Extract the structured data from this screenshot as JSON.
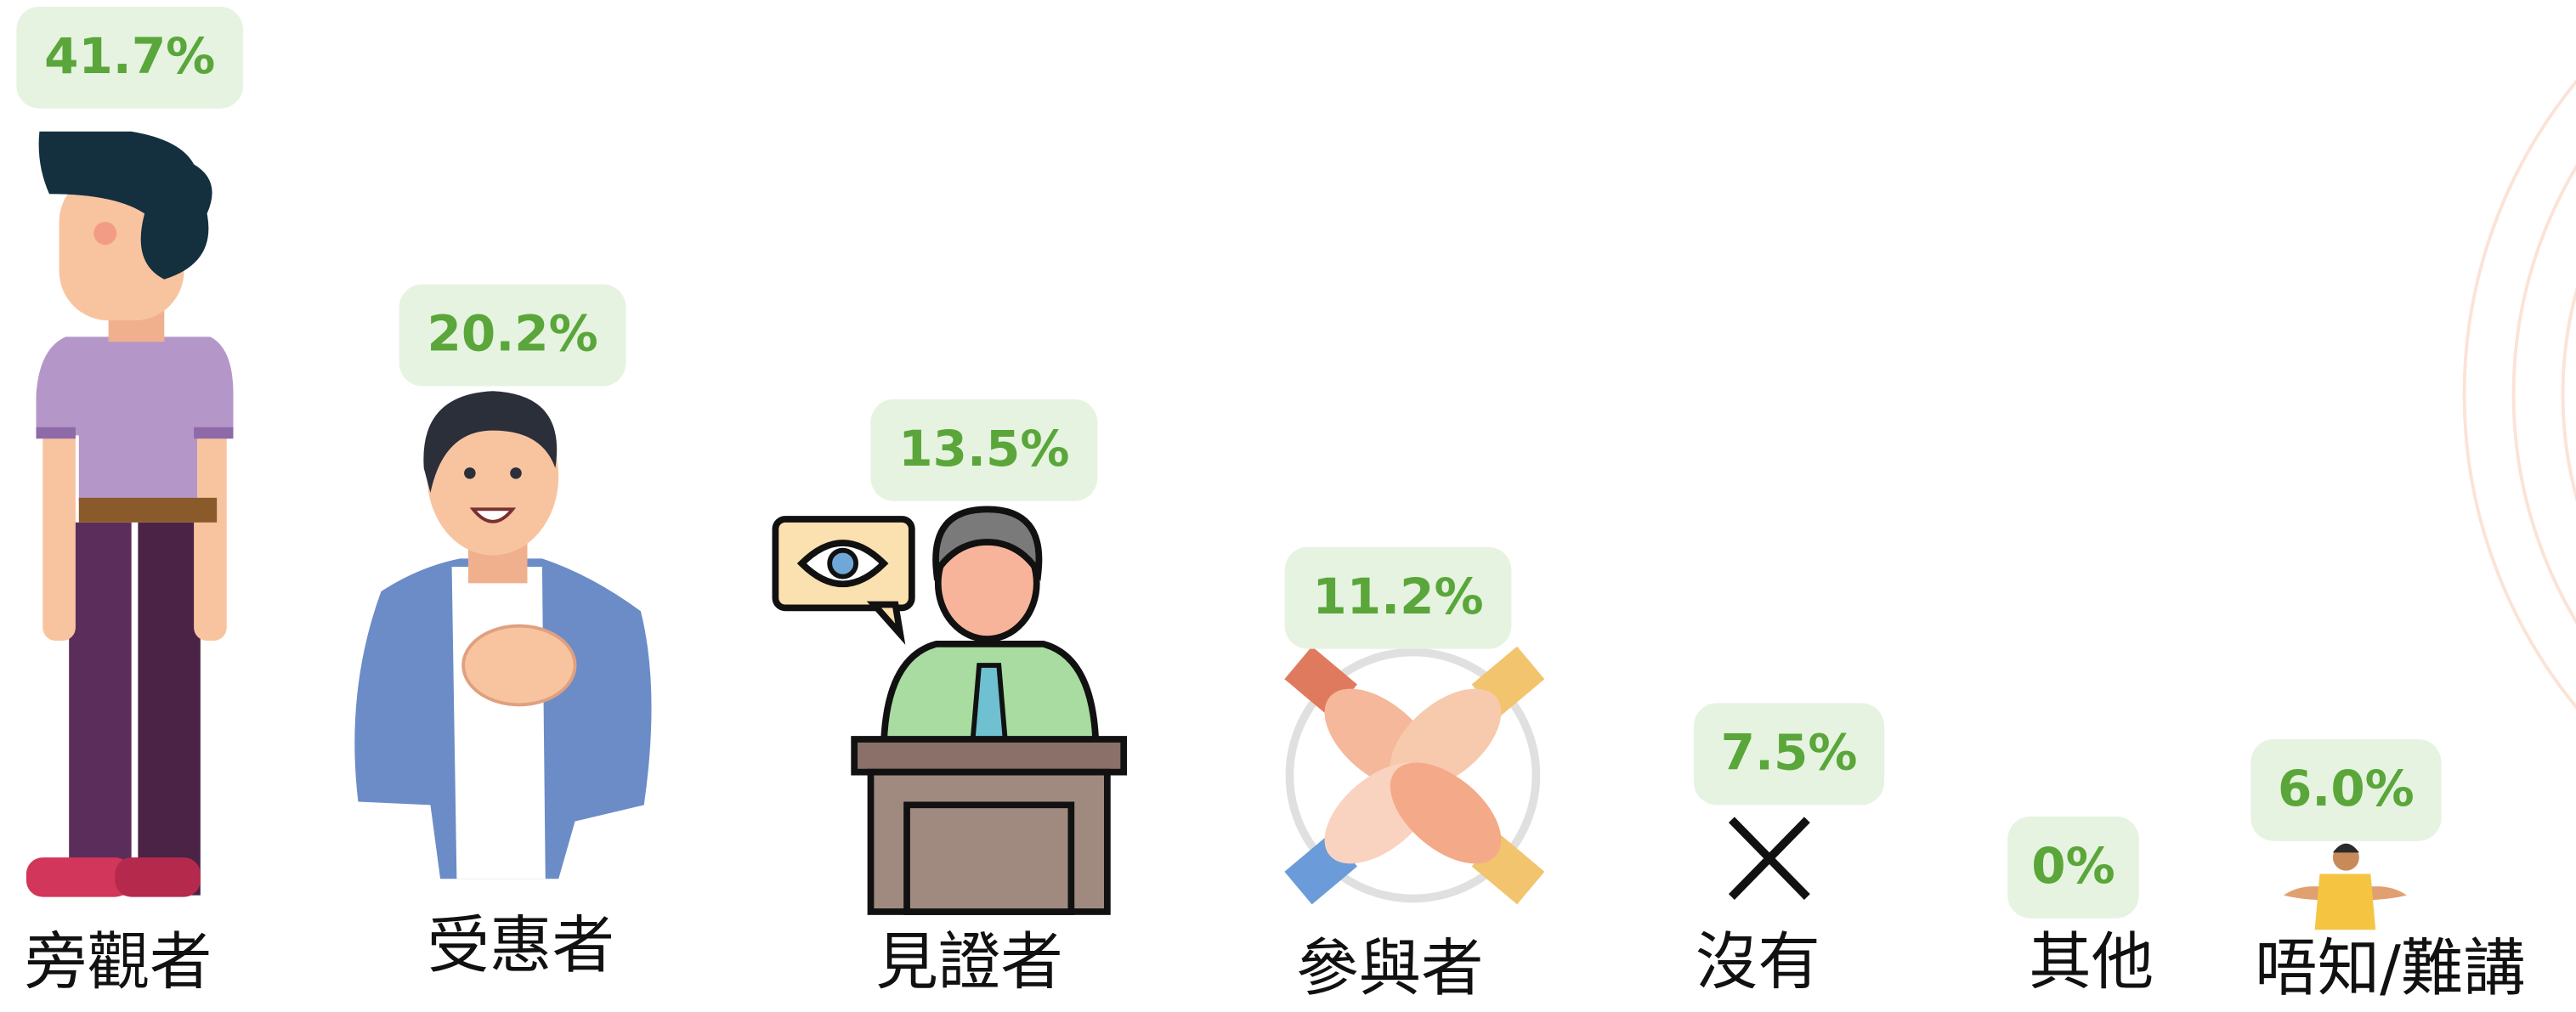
{
  "chart_data": {
    "type": "pictogram",
    "categories": [
      "旁觀者",
      "受惠者",
      "見證者",
      "參與者",
      "沒有",
      "其他",
      "唔知/難講"
    ],
    "values": [
      41.7,
      20.2,
      13.5,
      11.2,
      7.5,
      0,
      6.0
    ],
    "value_labels": [
      "41.7%",
      "20.2%",
      "13.5%",
      "11.2%",
      "7.5%",
      "0%",
      "6.0%"
    ],
    "color": "#5aa63a"
  }
}
